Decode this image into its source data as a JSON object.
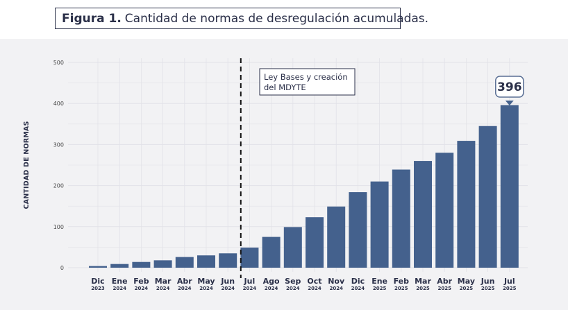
{
  "caption": {
    "label": "Figura 1.",
    "text": "Cantidad de normas de desregulación acumuladas."
  },
  "colors": {
    "bar": "#44618d",
    "panel_bg": "#f2f2f4",
    "grid": "#e2e2e8",
    "text": "#2a2f48"
  },
  "chart_data": {
    "type": "bar",
    "title": "",
    "xlabel": "",
    "ylabel": "CANTIDAD DE NORMAS",
    "ylim": [
      0,
      500
    ],
    "yticks": [
      0,
      100,
      200,
      300,
      400,
      500
    ],
    "grid": true,
    "categories": [
      {
        "month": "Dic",
        "year": "2023"
      },
      {
        "month": "Ene",
        "year": "2024"
      },
      {
        "month": "Feb",
        "year": "2024"
      },
      {
        "month": "Mar",
        "year": "2024"
      },
      {
        "month": "Abr",
        "year": "2024"
      },
      {
        "month": "May",
        "year": "2024"
      },
      {
        "month": "Jun",
        "year": "2024"
      },
      {
        "month": "Jul",
        "year": "2024"
      },
      {
        "month": "Ago",
        "year": "2024"
      },
      {
        "month": "Sep",
        "year": "2024"
      },
      {
        "month": "Oct",
        "year": "2024"
      },
      {
        "month": "Nov",
        "year": "2024"
      },
      {
        "month": "Dic",
        "year": "2024"
      },
      {
        "month": "Ene",
        "year": "2025"
      },
      {
        "month": "Feb",
        "year": "2025"
      },
      {
        "month": "Mar",
        "year": "2025"
      },
      {
        "month": "Abr",
        "year": "2025"
      },
      {
        "month": "May",
        "year": "2025"
      },
      {
        "month": "Jun",
        "year": "2025"
      },
      {
        "month": "Jul",
        "year": "2025"
      }
    ],
    "values": [
      4,
      9,
      14,
      18,
      26,
      30,
      35,
      49,
      75,
      99,
      123,
      149,
      184,
      210,
      239,
      260,
      280,
      309,
      345,
      396
    ],
    "annotations": {
      "vline_text_lines": [
        "Ley Bases y creación",
        "del MDYTE"
      ],
      "vline_between": [
        "Jun 2024",
        "Jul 2024"
      ],
      "callout_value": "396",
      "callout_category": "Jul 2025"
    }
  }
}
